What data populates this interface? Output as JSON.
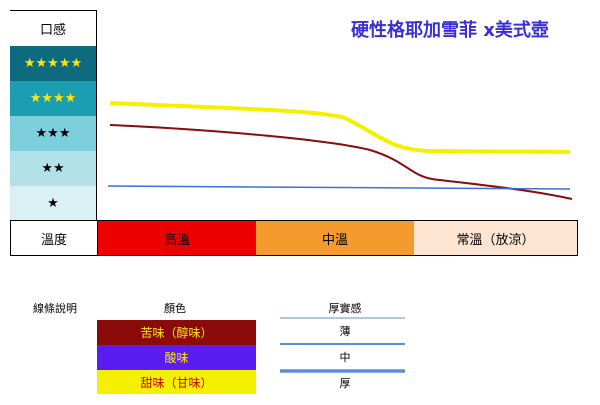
{
  "title": "硬性格耶加雪菲 x美式壺",
  "taste_scale": {
    "header": "口感",
    "levels": [
      "★★★★★",
      "★★★★",
      "★★★",
      "★★",
      "★"
    ]
  },
  "temperature": {
    "header": "溫度",
    "zones": [
      "高溫",
      "中溫",
      "常溫（放涼）"
    ]
  },
  "legend": {
    "title": "線條說明",
    "color_header": "顏色",
    "colors": [
      "苦味（醇味）",
      "酸味",
      "甜味（甘味）"
    ],
    "thickness_header": "厚實感",
    "thickness": [
      "薄",
      "中",
      "厚"
    ]
  }
}
